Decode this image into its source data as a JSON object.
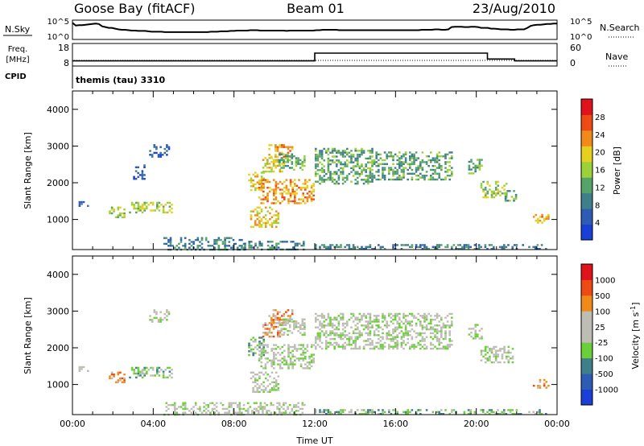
{
  "header": {
    "station": "Goose Bay (fitACF)",
    "beam": "Beam 01",
    "date": "23/Aug/2010"
  },
  "noise_panel": {
    "left_label": "N.Sky",
    "left_top": "10^5",
    "left_bottom": "10^0",
    "right_top": "10^5",
    "right_bottom": "10^0",
    "right_label": "N.Search",
    "sky_noise_log": [
      4.3,
      3.6,
      3.7,
      3.7,
      3.8,
      3.9,
      4.0,
      4.1,
      4.0,
      3.4,
      3.2,
      3.0,
      3.0,
      2.8,
      2.6,
      2.5,
      2.5,
      2.4,
      2.3,
      2.3,
      2.2,
      2.2,
      2.2,
      2.1,
      2.0,
      2.0,
      2.0,
      2.0,
      1.9,
      1.9,
      1.9,
      1.9,
      1.9,
      1.9,
      1.9,
      1.9,
      1.9,
      1.9,
      1.9,
      1.9,
      1.9,
      1.9,
      2.0,
      2.0,
      2.0,
      2.1,
      2.1,
      2.1,
      2.2,
      2.2,
      2.3,
      2.3,
      2.3,
      2.3,
      2.4,
      2.4,
      2.4,
      2.3,
      2.3,
      2.3,
      2.3,
      2.3,
      2.3,
      2.3,
      2.3,
      2.2,
      2.3,
      2.3,
      2.3,
      2.3,
      2.3,
      2.3,
      2.3,
      2.3,
      2.4,
      2.4,
      2.5,
      2.5,
      2.5,
      2.5,
      2.5,
      2.4,
      2.4,
      2.4,
      2.4,
      2.4,
      2.4,
      2.4,
      2.4,
      2.4,
      2.4,
      2.4,
      2.4,
      2.4,
      2.4,
      2.4,
      2.4,
      2.4,
      2.4,
      2.4,
      2.4,
      2.4,
      2.4,
      2.4,
      2.4,
      2.4,
      2.5,
      2.5,
      2.5,
      2.5,
      2.6,
      2.6,
      2.5,
      2.5,
      2.6,
      3.2,
      3.3,
      3.3,
      3.3,
      3.2,
      3.2,
      3.3,
      3.3,
      3.2,
      3.0,
      3.0,
      3.0,
      2.8,
      2.8,
      2.7,
      2.6,
      2.6,
      2.6,
      2.5,
      2.5,
      2.6,
      2.6,
      2.6,
      3.0,
      3.5,
      3.7,
      3.8,
      3.8,
      3.9,
      4.0,
      4.0,
      4.1,
      4.1
    ]
  },
  "freq_panel": {
    "left_label": "Freq.",
    "left_unit": "[MHz]",
    "left_top": "18",
    "left_bottom": "8",
    "right_top": "60",
    "right_bottom": "0",
    "right_label": "Nave",
    "cpid_label": "CPID",
    "cpid_value": "themis (tau) 3310",
    "freq_segments": [
      {
        "start_h": 0.0,
        "end_h": 12.0,
        "mhz": 10.3
      },
      {
        "start_h": 12.0,
        "end_h": 20.55,
        "mhz": 13.7
      },
      {
        "start_h": 20.55,
        "end_h": 21.9,
        "mhz": 11.1
      },
      {
        "start_h": 21.9,
        "end_h": 24.0,
        "mhz": 10.3
      }
    ]
  },
  "chart_data": [
    {
      "type": "heatmap",
      "quantity": "power",
      "ylabel": "Slant Range [km]",
      "ylim": [
        180,
        4500
      ],
      "yticks": [
        "1000",
        "2000",
        "3000",
        "4000"
      ],
      "xlim": [
        0,
        24
      ],
      "colorbar_label": "Power [dB]",
      "colorbar_ticks": [
        "4",
        "8",
        "12",
        "16",
        "20",
        "24",
        "28"
      ],
      "colors": [
        "#1a3fd6",
        "#2e5bb3",
        "#3f7f8a",
        "#56a36a",
        "#9cd13a",
        "#e5cf1f",
        "#f28a1a",
        "#ee4a15",
        "#e0121a"
      ],
      "regions": [
        {
          "t0": 0.2,
          "t1": 0.8,
          "r0": 1380,
          "r1": 1500,
          "level": 1
        },
        {
          "t0": 1.8,
          "t1": 2.6,
          "r0": 1050,
          "r1": 1350,
          "level": 4
        },
        {
          "t0": 2.8,
          "t1": 4.9,
          "r0": 1200,
          "r1": 1480,
          "level": 4
        },
        {
          "t0": 3.8,
          "t1": 4.8,
          "r0": 2700,
          "r1": 3050,
          "level": 1
        },
        {
          "t0": 3.0,
          "t1": 3.6,
          "r0": 2100,
          "r1": 2500,
          "level": 1
        },
        {
          "t0": 4.5,
          "t1": 8.5,
          "r0": 200,
          "r1": 520,
          "level": 2
        },
        {
          "t0": 8.5,
          "t1": 11.5,
          "r0": 200,
          "r1": 420,
          "level": 2
        },
        {
          "t0": 8.7,
          "t1": 9.5,
          "r0": 1800,
          "r1": 2300,
          "level": 5
        },
        {
          "t0": 9.2,
          "t1": 11.9,
          "r0": 1450,
          "r1": 2100,
          "level": 6
        },
        {
          "t0": 8.8,
          "t1": 10.2,
          "r0": 800,
          "r1": 1350,
          "level": 5
        },
        {
          "t0": 9.4,
          "t1": 10.5,
          "r0": 2300,
          "r1": 2700,
          "level": 5
        },
        {
          "t0": 9.7,
          "t1": 10.9,
          "r0": 2700,
          "r1": 3050,
          "level": 6
        },
        {
          "t0": 10.2,
          "t1": 11.5,
          "r0": 2350,
          "r1": 2800,
          "level": 3
        },
        {
          "t0": 12.0,
          "t1": 14.8,
          "r0": 2000,
          "r1": 2950,
          "level": 3
        },
        {
          "t0": 14.8,
          "t1": 18.8,
          "r0": 2100,
          "r1": 2850,
          "level": 3
        },
        {
          "t0": 19.6,
          "t1": 20.3,
          "r0": 2250,
          "r1": 2650,
          "level": 3
        },
        {
          "t0": 20.2,
          "t1": 21.5,
          "r0": 1600,
          "r1": 2050,
          "level": 4
        },
        {
          "t0": 21.4,
          "t1": 22.0,
          "r0": 1500,
          "r1": 1800,
          "level": 3
        },
        {
          "t0": 22.8,
          "t1": 23.6,
          "r0": 900,
          "r1": 1150,
          "level": 6
        },
        {
          "t0": 12.0,
          "t1": 23.5,
          "r0": 200,
          "r1": 330,
          "level": 2
        }
      ]
    },
    {
      "type": "heatmap",
      "quantity": "velocity",
      "ylabel": "Slant Range [km]",
      "ylim": [
        180,
        4500
      ],
      "yticks": [
        "1000",
        "2000",
        "3000",
        "4000"
      ],
      "xlim": [
        0,
        24
      ],
      "xticks": [
        "00:00",
        "04:00",
        "08:00",
        "12:00",
        "16:00",
        "20:00",
        "00:00"
      ],
      "xlabel": "Time UT",
      "colorbar_label": "Velocity [m s",
      "colorbar_label_sup": "-1",
      "colorbar_label_end": "]",
      "colorbar_ticks": [
        "1000",
        "500",
        "100",
        "25",
        "-25",
        "-100",
        "-500",
        "-1000"
      ],
      "colors": [
        "#1a3fd6",
        "#2e5bb3",
        "#3f7f8a",
        "#6bcf3a",
        "#bdbdb4",
        "#bdbdb4",
        "#f28a1a",
        "#ee4a15",
        "#e0121a"
      ],
      "regions": [
        {
          "t0": 0.2,
          "t1": 0.8,
          "r0": 1380,
          "r1": 1500,
          "level": 4
        },
        {
          "t0": 1.8,
          "t1": 2.6,
          "r0": 1050,
          "r1": 1350,
          "level": 6
        },
        {
          "t0": 2.8,
          "t1": 4.9,
          "r0": 1200,
          "r1": 1480,
          "level": 3
        },
        {
          "t0": 3.8,
          "t1": 4.8,
          "r0": 2700,
          "r1": 3050,
          "level": 4
        },
        {
          "t0": 4.5,
          "t1": 11.5,
          "r0": 200,
          "r1": 520,
          "level": 4
        },
        {
          "t0": 8.7,
          "t1": 9.5,
          "r0": 1800,
          "r1": 2300,
          "level": 3
        },
        {
          "t0": 9.2,
          "t1": 11.9,
          "r0": 1450,
          "r1": 2100,
          "level": 4
        },
        {
          "t0": 8.8,
          "t1": 10.2,
          "r0": 800,
          "r1": 1350,
          "level": 4
        },
        {
          "t0": 9.4,
          "t1": 10.5,
          "r0": 2300,
          "r1": 2700,
          "level": 6
        },
        {
          "t0": 9.7,
          "t1": 10.9,
          "r0": 2700,
          "r1": 3050,
          "level": 6
        },
        {
          "t0": 10.2,
          "t1": 11.5,
          "r0": 2350,
          "r1": 2800,
          "level": 4
        },
        {
          "t0": 12.0,
          "t1": 18.8,
          "r0": 2000,
          "r1": 2950,
          "level": 4
        },
        {
          "t0": 19.6,
          "t1": 20.3,
          "r0": 2250,
          "r1": 2650,
          "level": 4
        },
        {
          "t0": 20.2,
          "t1": 21.8,
          "r0": 1600,
          "r1": 2050,
          "level": 4
        },
        {
          "t0": 22.8,
          "t1": 23.6,
          "r0": 900,
          "r1": 1150,
          "level": 6
        },
        {
          "t0": 12.0,
          "t1": 23.5,
          "r0": 200,
          "r1": 330,
          "level": 3
        }
      ]
    }
  ]
}
